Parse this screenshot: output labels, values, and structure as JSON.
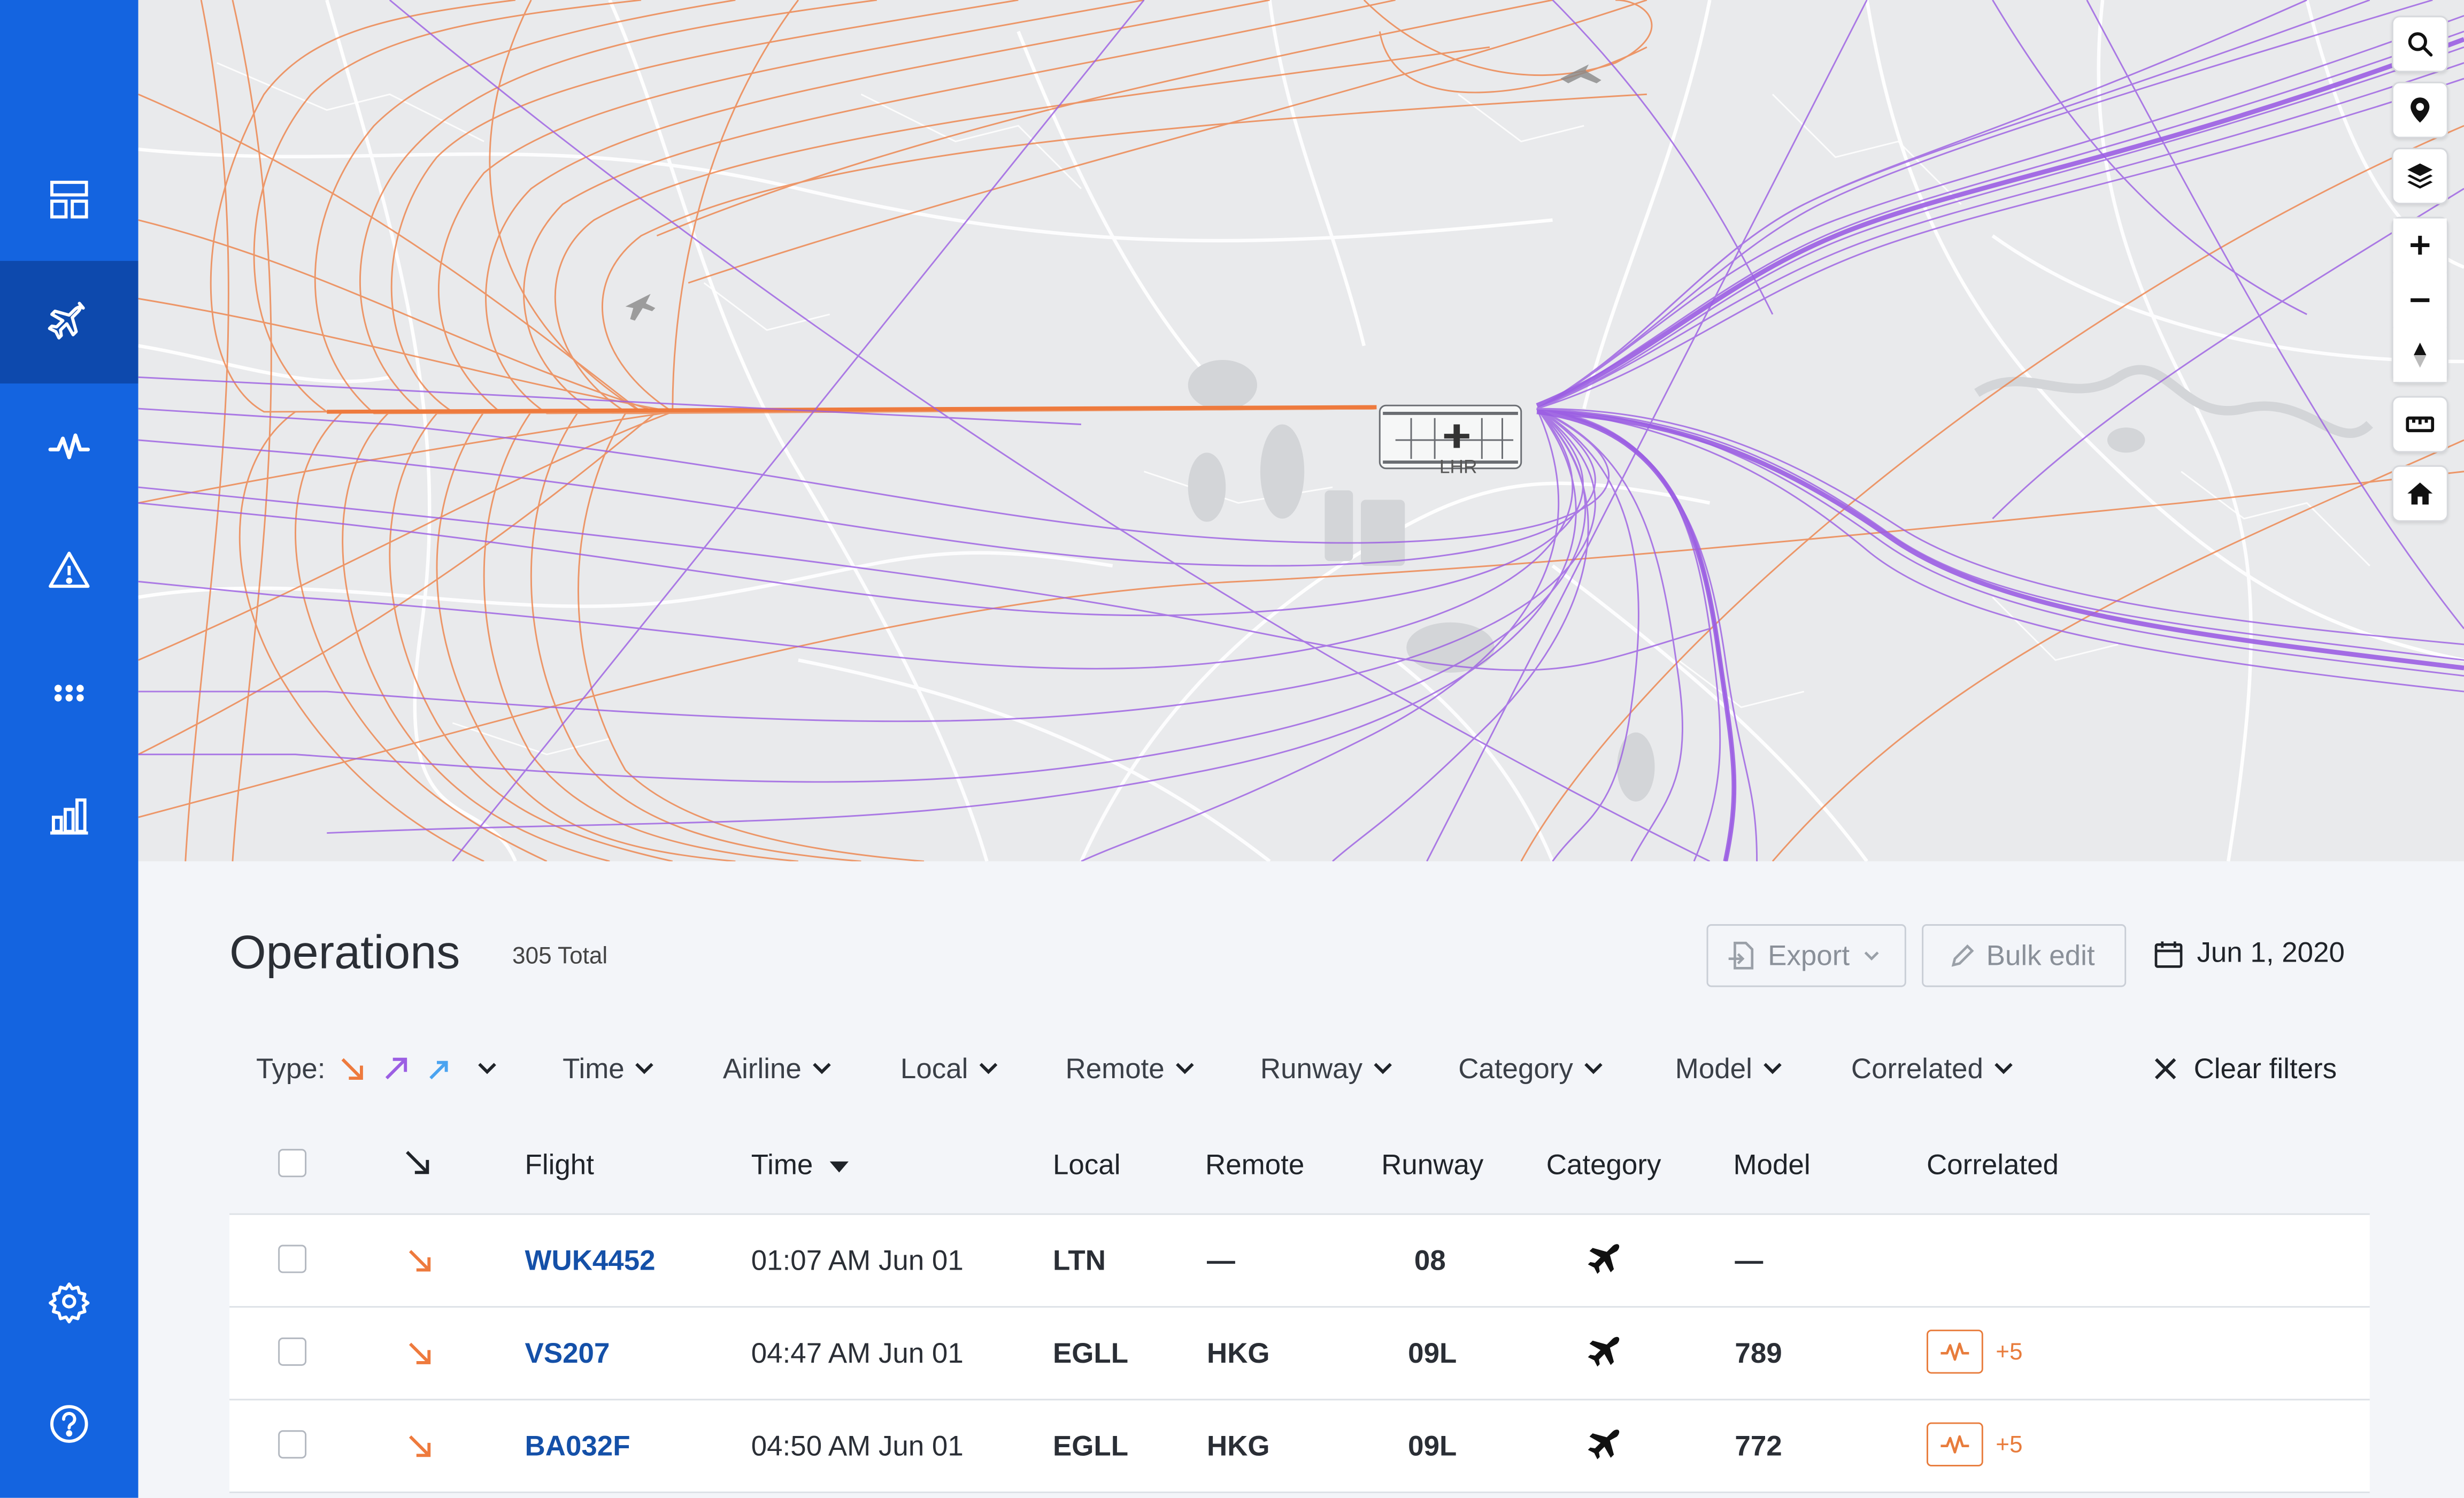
{
  "sidebar": {
    "items": [
      {
        "icon": "dashboard-icon"
      },
      {
        "icon": "flight-icon",
        "active": true
      },
      {
        "icon": "activity-icon"
      },
      {
        "icon": "alert-triangle-icon"
      },
      {
        "icon": "people-icon"
      },
      {
        "icon": "bar-chart-icon"
      },
      {
        "icon": "gear-icon"
      },
      {
        "icon": "help-icon"
      }
    ]
  },
  "map": {
    "airport_label": "LHR",
    "arrival_color": "#ee7a3d",
    "departure_color": "#9b5ee3",
    "controls": [
      "search-icon",
      "location-pin-icon",
      "layers-icon",
      "zoom-in-icon",
      "zoom-out-icon",
      "compass-icon",
      "ruler-icon",
      "home-icon"
    ]
  },
  "operations": {
    "title": "Operations",
    "total": "305 Total",
    "export_label": "Export",
    "bulk_edit_label": "Bulk edit",
    "date": "Jun 1, 2020",
    "filters": {
      "type_label": "Type:",
      "time": "Time",
      "airline": "Airline",
      "local": "Local",
      "remote": "Remote",
      "runway": "Runway",
      "category": "Category",
      "model": "Model",
      "correlated": "Correlated",
      "clear": "Clear filters"
    },
    "columns": {
      "flight": "Flight",
      "time": "Time",
      "local": "Local",
      "remote": "Remote",
      "runway": "Runway",
      "category": "Category",
      "model": "Model",
      "correlated": "Correlated"
    },
    "rows": [
      {
        "flight": "WUK4452",
        "time": "01:07 AM Jun 01",
        "local": "LTN",
        "remote": "—",
        "runway": "08",
        "model": "—",
        "correlated": ""
      },
      {
        "flight": "VS207",
        "time": "04:47 AM Jun 01",
        "local": "EGLL",
        "remote": "HKG",
        "runway": "09L",
        "model": "789",
        "correlated": "+5"
      },
      {
        "flight": "BA032F",
        "time": "04:50 AM Jun 01",
        "local": "EGLL",
        "remote": "HKG",
        "runway": "09L",
        "model": "772",
        "correlated": "+5"
      }
    ]
  }
}
